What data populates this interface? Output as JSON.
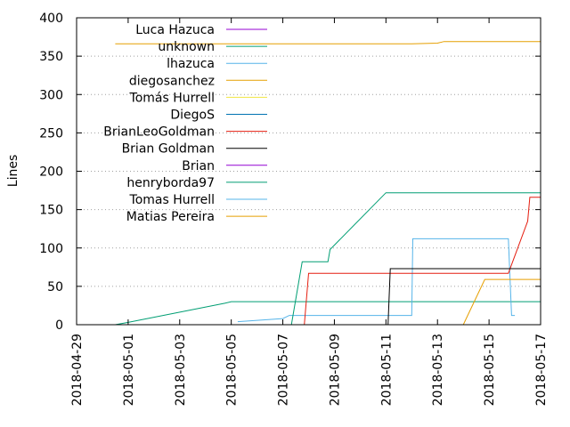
{
  "chart_data": {
    "type": "line",
    "title": "",
    "xlabel": "",
    "ylabel": "Lines",
    "x_type": "date",
    "xlim": [
      "2018-04-29",
      "2018-05-17"
    ],
    "ylim": [
      0,
      400
    ],
    "x_ticks": [
      "2018-04-29",
      "2018-05-01",
      "2018-05-03",
      "2018-05-05",
      "2018-05-07",
      "2018-05-09",
      "2018-05-11",
      "2018-05-13",
      "2018-05-15",
      "2018-05-17"
    ],
    "y_ticks": [
      0,
      50,
      100,
      150,
      200,
      250,
      300,
      350,
      400
    ],
    "grid": "horizontal dotted",
    "legend_position": "top-left",
    "series": [
      {
        "name": "Luca Hazuca",
        "color": "#9400d3",
        "points": []
      },
      {
        "name": "unknown",
        "color": "#009e73",
        "points": []
      },
      {
        "name": "lhazuca",
        "color": "#56b4e9",
        "points": []
      },
      {
        "name": "diegosanchez",
        "color": "#e69f00",
        "points": []
      },
      {
        "name": "Tomás Hurrell",
        "color": "#f0e442",
        "points": []
      },
      {
        "name": "DiegoS",
        "color": "#0072b2",
        "points": []
      },
      {
        "name": "BrianLeoGoldman",
        "color": "#e51e10",
        "points": []
      },
      {
        "name": "Brian Goldman",
        "color": "#000000",
        "points": []
      },
      {
        "name": "Brian",
        "color": "#9400d3",
        "points": []
      },
      {
        "name": "henryborda97",
        "color": "#009e73",
        "points": [
          [
            "2018-04-30T12:00",
            0
          ],
          [
            "2018-05-01",
            3
          ],
          [
            "2018-05-04T18:00",
            28
          ],
          [
            "2018-05-05",
            30
          ],
          [
            "2018-05-17",
            30
          ]
        ]
      },
      {
        "name": "Tomas Hurrell",
        "color": "#56b4e9",
        "points": [
          [
            "2018-05-05T06:00",
            4
          ],
          [
            "2018-05-07",
            8
          ],
          [
            "2018-05-07T06:00",
            12
          ],
          [
            "2018-05-12",
            12
          ],
          [
            "2018-05-12T01:00",
            112
          ],
          [
            "2018-05-15T18:00",
            112
          ],
          [
            "2018-05-15T21:00",
            12
          ],
          [
            "2018-05-16",
            12
          ]
        ]
      },
      {
        "name": "Matias Pereira",
        "color": "#e69f00",
        "points": [
          [
            "2018-04-30T12:00",
            366
          ],
          [
            "2018-05-12",
            366
          ],
          [
            "2018-05-13",
            367
          ],
          [
            "2018-05-13T06:00",
            369
          ],
          [
            "2018-05-17",
            369
          ]
        ]
      },
      {
        "name": "",
        "color": "#009e73",
        "points": [
          [
            "2018-05-07T08:00",
            0
          ],
          [
            "2018-05-07T18:00",
            82
          ],
          [
            "2018-05-08T18:00",
            82
          ],
          [
            "2018-05-08T20:00",
            98
          ],
          [
            "2018-05-11",
            172
          ],
          [
            "2018-05-17",
            172
          ]
        ]
      },
      {
        "name": "",
        "color": "#e51e10",
        "points": [
          [
            "2018-05-07T20:00",
            0
          ],
          [
            "2018-05-08",
            67
          ],
          [
            "2018-05-15T18:00",
            67
          ],
          [
            "2018-05-16T12:00",
            135
          ],
          [
            "2018-05-16T14:00",
            166
          ],
          [
            "2018-05-17",
            166
          ]
        ]
      },
      {
        "name": "",
        "color": "#000000",
        "points": [
          [
            "2018-05-11T02:00",
            0
          ],
          [
            "2018-05-11T04:00",
            73
          ],
          [
            "2018-05-17",
            73
          ]
        ]
      },
      {
        "name": "",
        "color": "#e69f00",
        "points": [
          [
            "2018-05-14",
            0
          ],
          [
            "2018-05-14T20:00",
            59
          ],
          [
            "2018-05-17",
            59
          ]
        ]
      }
    ]
  }
}
